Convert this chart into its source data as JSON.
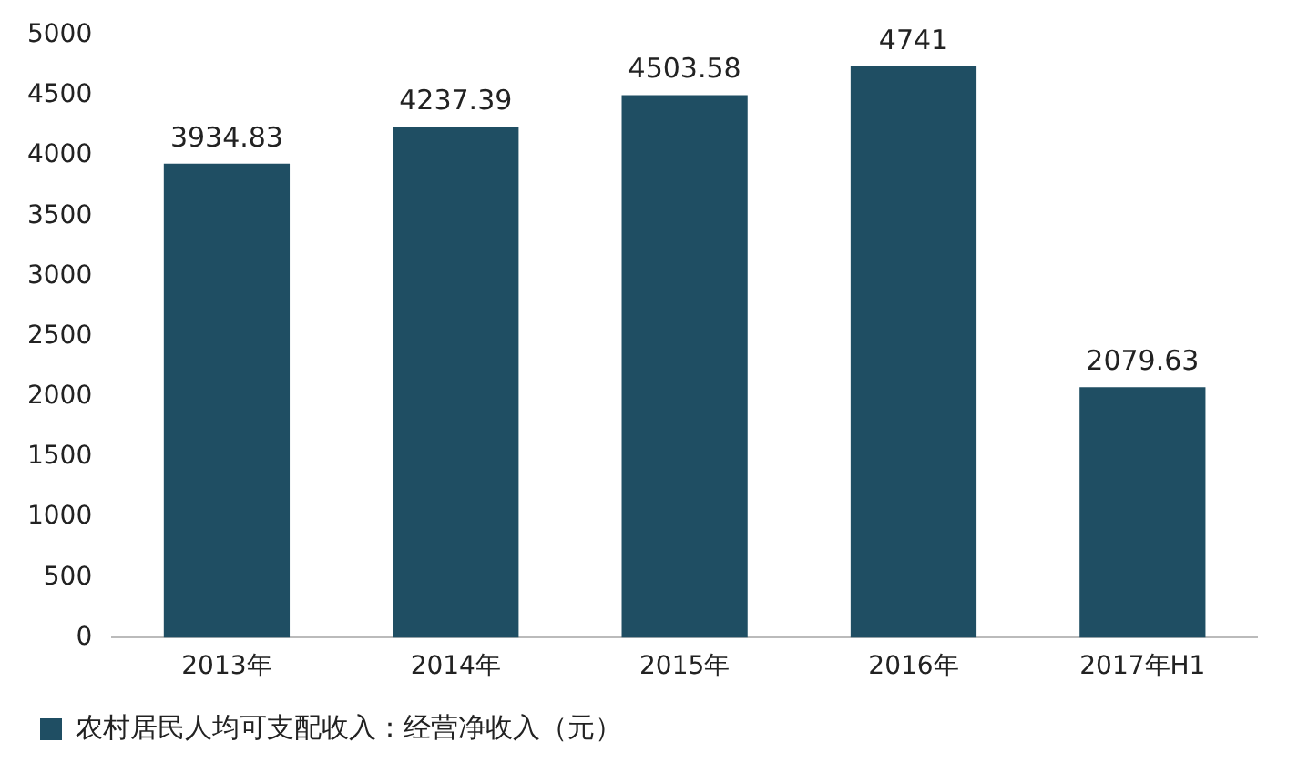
{
  "chart_data": {
    "type": "bar",
    "categories": [
      "2013年",
      "2014年",
      "2015年",
      "2016年",
      "2017年H1"
    ],
    "series": [
      {
        "name": "农村居民人均可支配收入：经营净收入（元）",
        "color": "#1f4e63",
        "values": [
          3934.83,
          4237.39,
          4503.58,
          4741,
          2079.63
        ]
      }
    ],
    "ylim": [
      0,
      5000
    ],
    "yticks": [
      0,
      500,
      1000,
      1500,
      2000,
      2500,
      3000,
      3500,
      4000,
      4500,
      5000
    ],
    "grid": false,
    "legend": "bottom left",
    "data_labels": true
  }
}
